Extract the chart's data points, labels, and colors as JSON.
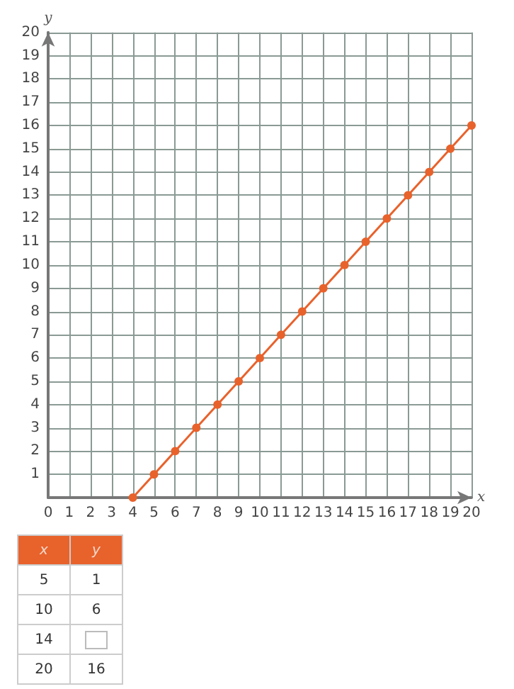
{
  "chart_data": {
    "type": "line",
    "xlabel": "x",
    "ylabel": "y",
    "x": [
      4,
      5,
      6,
      7,
      8,
      9,
      10,
      11,
      12,
      13,
      14,
      15,
      16,
      17,
      18,
      19,
      20
    ],
    "series": [
      {
        "color": "#e8622c",
        "values": [
          0,
          1,
          2,
          3,
          4,
          5,
          6,
          7,
          8,
          9,
          10,
          11,
          12,
          13,
          14,
          15,
          16
        ]
      }
    ],
    "xlim": [
      0,
      20
    ],
    "xticks": [
      0,
      1,
      2,
      3,
      4,
      5,
      6,
      7,
      8,
      9,
      10,
      11,
      12,
      13,
      14,
      15,
      16,
      17,
      18,
      19,
      20
    ],
    "ylim": [
      0,
      20
    ],
    "yticks": [
      {
        "value": 0,
        "label": null
      },
      1,
      2,
      3,
      4,
      5,
      6,
      7,
      8,
      9,
      10,
      11,
      12,
      13,
      14,
      15,
      16,
      17,
      18,
      19,
      20
    ],
    "grid": true,
    "marker": "circle",
    "line_style": "solid",
    "annotations": [
      "x",
      "y",
      "5",
      "1",
      "10",
      "6",
      "14",
      null,
      "20",
      "16"
    ]
  }
}
